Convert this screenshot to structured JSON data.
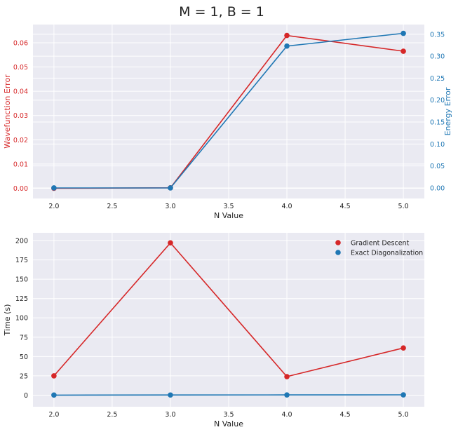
{
  "suptitle": "M = 1, B = 1",
  "colors": {
    "red": "#d62728",
    "blue": "#1f77b4",
    "panel_bg": "#eaeaf2",
    "grid": "#ffffff",
    "text": "#222222"
  },
  "chart_data": [
    {
      "type": "line",
      "title": "",
      "xlabel": "N Value",
      "ylabel": "Wavefunction Error",
      "ylabel_right": "Energy Error",
      "xlim": [
        1.82,
        5.18
      ],
      "ylim": [
        -0.0042,
        0.0675
      ],
      "ylim_right": [
        -0.024,
        0.372
      ],
      "xticks": [
        "2.0",
        "2.5",
        "3.0",
        "3.5",
        "4.0",
        "4.5",
        "5.0"
      ],
      "yticks": [
        "0.00",
        "0.01",
        "0.02",
        "0.03",
        "0.04",
        "0.05",
        "0.06"
      ],
      "yticks_right": [
        "0.00",
        "0.05",
        "0.10",
        "0.15",
        "0.20",
        "0.25",
        "0.30",
        "0.35"
      ],
      "grid": true,
      "series": [
        {
          "axis": "left",
          "color": "#d62728",
          "x": [
            2,
            3,
            4,
            5
          ],
          "y": [
            0.0,
            0.0002,
            0.063,
            0.0565
          ]
        },
        {
          "axis": "right",
          "color": "#1f77b4",
          "x": [
            2,
            3,
            4,
            5
          ],
          "y": [
            0.0,
            0.0,
            0.323,
            0.352
          ]
        }
      ]
    },
    {
      "type": "line",
      "title": "",
      "xlabel": "N Value",
      "ylabel": "Time (s)",
      "xlim": [
        1.82,
        5.18
      ],
      "ylim": [
        -15,
        210
      ],
      "xticks": [
        "2.0",
        "2.5",
        "3.0",
        "3.5",
        "4.0",
        "4.5",
        "5.0"
      ],
      "yticks": [
        "0",
        "25",
        "50",
        "75",
        "100",
        "125",
        "150",
        "175",
        "200"
      ],
      "grid": true,
      "legend_position": "top-right",
      "series": [
        {
          "name": "Gradient Descent",
          "color": "#d62728",
          "x": [
            2,
            3,
            4,
            5
          ],
          "y": [
            25,
            197,
            24,
            61
          ]
        },
        {
          "name": "Exact Diagonalization",
          "color": "#1f77b4",
          "x": [
            2,
            3,
            4,
            5
          ],
          "y": [
            0.1,
            0.2,
            0.3,
            0.4
          ]
        }
      ]
    }
  ]
}
